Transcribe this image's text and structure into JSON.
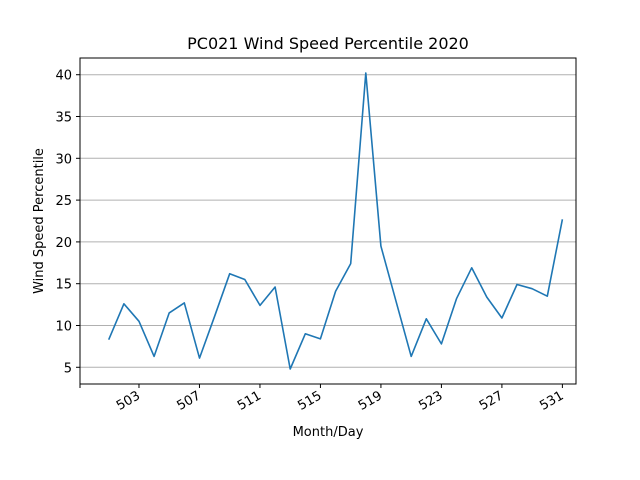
{
  "chart_data": {
    "type": "line",
    "title": "PC021 Wind Speed Percentile 2020",
    "xlabel": "Month/Day",
    "ylabel": "Wind Speed Percentile",
    "x": [
      501,
      502,
      503,
      504,
      505,
      506,
      507,
      508,
      509,
      510,
      511,
      512,
      513,
      514,
      515,
      516,
      517,
      518,
      519,
      520,
      521,
      522,
      523,
      524,
      525,
      526,
      527,
      528,
      529,
      530,
      531
    ],
    "series": [
      {
        "values": [
          8.3,
          12.6,
          10.5,
          6.3,
          11.5,
          12.7,
          6.1,
          11.1,
          16.2,
          15.5,
          12.4,
          14.6,
          4.8,
          9.0,
          8.4,
          14.1,
          17.4,
          40.2,
          19.5,
          12.9,
          6.3,
          10.8,
          7.8,
          13.2,
          16.9,
          13.4,
          10.9,
          14.9,
          14.4,
          13.5,
          22.7
        ],
        "color": "#1f77b4"
      }
    ],
    "x_ticks": [
      "503",
      "507",
      "511",
      "515",
      "519",
      "523",
      "527",
      "531"
    ],
    "y_ticks": [
      "5",
      "10",
      "15",
      "20",
      "25",
      "30",
      "35",
      "40"
    ],
    "xlim": [
      499.1,
      531.9
    ],
    "ylim": [
      3.0,
      42.0
    ],
    "grid": "horizontal"
  }
}
